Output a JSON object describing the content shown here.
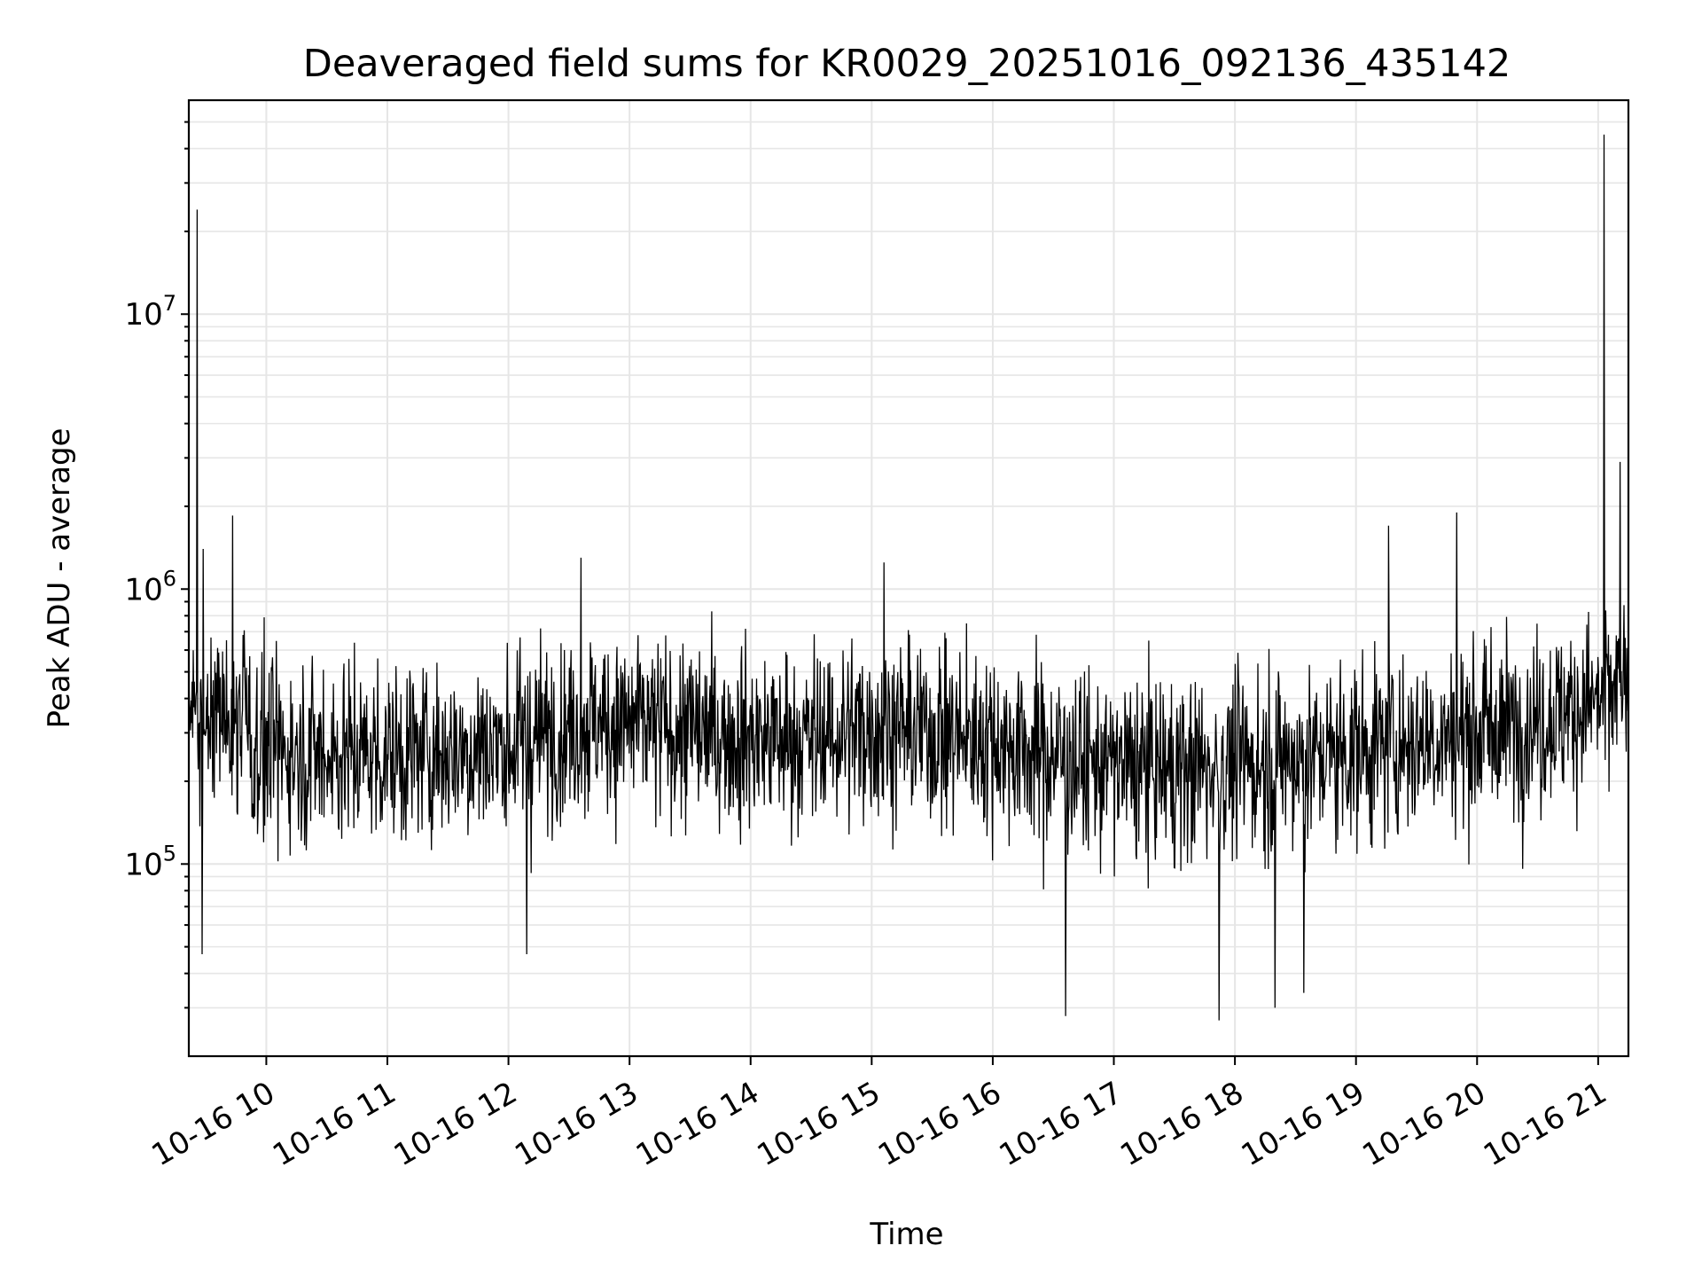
{
  "chart_data": {
    "type": "line",
    "title": "Deaveraged field sums for KR0029_20251016_092136_435142",
    "xlabel": "Time",
    "ylabel": "Peak ADU - average",
    "yscale": "log",
    "ylim": [
      20000,
      60000000
    ],
    "xlim_hours": [
      9.36,
      21.25
    ],
    "grid": true,
    "x_ticks": [
      {
        "label": "10-16 10",
        "hour": 10
      },
      {
        "label": "10-16 11",
        "hour": 11
      },
      {
        "label": "10-16 12",
        "hour": 12
      },
      {
        "label": "10-16 13",
        "hour": 13
      },
      {
        "label": "10-16 14",
        "hour": 14
      },
      {
        "label": "10-16 15",
        "hour": 15
      },
      {
        "label": "10-16 16",
        "hour": 16
      },
      {
        "label": "10-16 17",
        "hour": 17
      },
      {
        "label": "10-16 18",
        "hour": 18
      },
      {
        "label": "10-16 19",
        "hour": 19
      },
      {
        "label": "10-16 20",
        "hour": 20
      },
      {
        "label": "10-16 21",
        "hour": 21
      }
    ],
    "y_ticks": [
      {
        "base": "10",
        "exp": "5",
        "value": 100000
      },
      {
        "base": "10",
        "exp": "6",
        "value": 1000000
      },
      {
        "base": "10",
        "exp": "7",
        "value": 10000000
      }
    ],
    "baseline": [
      {
        "hour": 9.36,
        "value": 380000
      },
      {
        "hour": 9.7,
        "value": 320000
      },
      {
        "hour": 10.0,
        "value": 260000
      },
      {
        "hour": 11.0,
        "value": 250000
      },
      {
        "hour": 12.0,
        "value": 270000
      },
      {
        "hour": 12.7,
        "value": 330000
      },
      {
        "hour": 13.5,
        "value": 300000
      },
      {
        "hour": 14.5,
        "value": 280000
      },
      {
        "hour": 15.0,
        "value": 320000
      },
      {
        "hour": 16.0,
        "value": 280000
      },
      {
        "hour": 16.8,
        "value": 230000
      },
      {
        "hour": 17.5,
        "value": 220000
      },
      {
        "hour": 18.5,
        "value": 240000
      },
      {
        "hour": 19.5,
        "value": 280000
      },
      {
        "hour": 20.5,
        "value": 330000
      },
      {
        "hour": 21.25,
        "value": 430000
      }
    ],
    "spikes": [
      {
        "hour": 9.43,
        "value": 24000000
      },
      {
        "hour": 9.48,
        "value": 1400000
      },
      {
        "hour": 9.72,
        "value": 1850000
      },
      {
        "hour": 9.47,
        "value": 47000
      },
      {
        "hour": 12.6,
        "value": 1300000
      },
      {
        "hour": 12.15,
        "value": 47000
      },
      {
        "hour": 15.1,
        "value": 1250000
      },
      {
        "hour": 16.6,
        "value": 28000
      },
      {
        "hour": 17.87,
        "value": 27000
      },
      {
        "hour": 18.33,
        "value": 30000
      },
      {
        "hour": 18.57,
        "value": 34000
      },
      {
        "hour": 19.27,
        "value": 1700000
      },
      {
        "hour": 19.83,
        "value": 1900000
      },
      {
        "hour": 21.05,
        "value": 45000000
      },
      {
        "hour": 21.18,
        "value": 2900000
      }
    ]
  }
}
